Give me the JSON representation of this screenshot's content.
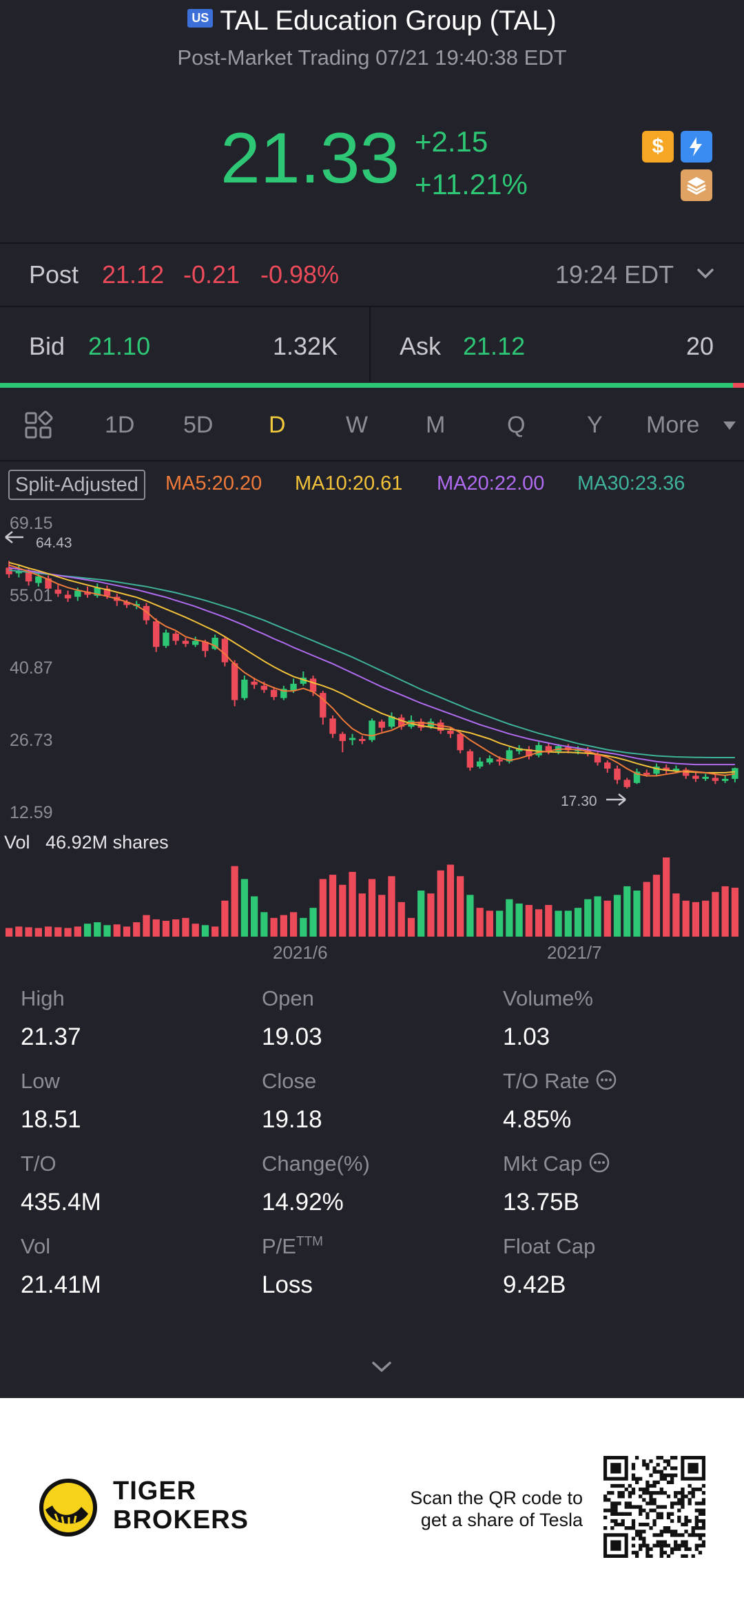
{
  "header": {
    "market_badge": "US",
    "title": "TAL Education Group (TAL)",
    "subtitle": "Post-Market Trading 07/21 19:40:38 EDT",
    "price": "21.33",
    "change_abs": "+2.15",
    "change_pct": "+11.21%",
    "icons": [
      "dollar-icon",
      "flash-icon",
      "stack-icon"
    ]
  },
  "post": {
    "label": "Post",
    "price": "21.12",
    "change": "-0.21",
    "change_pct": "-0.98%",
    "time": "19:24 EDT"
  },
  "quote": {
    "bid_label": "Bid",
    "bid_price": "21.10",
    "bid_size": "1.32K",
    "ask_label": "Ask",
    "ask_price": "21.12",
    "ask_size": "20",
    "bid_ratio": 0.985
  },
  "periods": {
    "items": [
      "1D",
      "5D",
      "D",
      "W",
      "M",
      "Q",
      "Y"
    ],
    "active": "D",
    "more_label": "More"
  },
  "indicators": {
    "split_label": "Split-Adjusted",
    "ma5": "MA5:20.20",
    "ma10": "MA10:20.61",
    "ma20": "MA20:22.00",
    "ma30": "MA30:23.36",
    "colors": {
      "ma5": "#f07a3a",
      "ma10": "#f3c23a",
      "ma20": "#b06cf0",
      "ma30": "#3fb39a",
      "up": "#2ec775",
      "down": "#ee4b5a"
    }
  },
  "chart_data": {
    "type": "candlestick",
    "y_ticks": [
      "69.15",
      "55.01",
      "40.87",
      "26.73",
      "12.59"
    ],
    "ylim": [
      12.59,
      69.15
    ],
    "high_marker": "64.43",
    "low_marker": "17.30",
    "x_ticks": [
      "2021/6",
      "2021/7"
    ],
    "volume_label": "Vol",
    "volume_value": "46.92M shares",
    "candles": [
      [
        60.5,
        59.2,
        61.8,
        58.5
      ],
      [
        59.4,
        59.8,
        61.0,
        58.6
      ],
      [
        59.6,
        57.8,
        60.2,
        57.0
      ],
      [
        57.5,
        58.8,
        59.5,
        56.8
      ],
      [
        58.4,
        56.4,
        59.0,
        55.8
      ],
      [
        56.2,
        55.4,
        57.2,
        54.8
      ],
      [
        55.2,
        54.5,
        56.0,
        53.8
      ],
      [
        54.8,
        56.0,
        56.6,
        54.0
      ],
      [
        55.8,
        55.2,
        56.8,
        54.6
      ],
      [
        55.0,
        56.6,
        57.4,
        54.6
      ],
      [
        56.4,
        55.0,
        57.0,
        54.4
      ],
      [
        54.8,
        54.0,
        55.4,
        53.0
      ],
      [
        53.8,
        53.2,
        54.2,
        52.6
      ],
      [
        53.2,
        53.4,
        54.0,
        52.4
      ],
      [
        53.0,
        50.2,
        53.6,
        49.4
      ],
      [
        50.0,
        45.0,
        50.6,
        44.0
      ],
      [
        45.2,
        47.8,
        48.4,
        44.8
      ],
      [
        47.6,
        46.2,
        48.0,
        45.4
      ],
      [
        46.2,
        45.6,
        46.8,
        45.0
      ],
      [
        45.4,
        46.2,
        47.0,
        45.0
      ],
      [
        46.0,
        44.2,
        46.4,
        43.0
      ],
      [
        44.6,
        46.8,
        47.4,
        44.4
      ],
      [
        46.6,
        42.0,
        47.0,
        41.2
      ],
      [
        41.8,
        34.6,
        42.4,
        33.4
      ],
      [
        35.0,
        38.6,
        39.4,
        34.6
      ],
      [
        38.2,
        37.6,
        39.0,
        36.8
      ],
      [
        37.4,
        36.6,
        38.2,
        36.0
      ],
      [
        36.6,
        35.2,
        37.2,
        34.6
      ],
      [
        35.0,
        36.8,
        37.4,
        34.6
      ],
      [
        36.4,
        37.8,
        38.8,
        36.0
      ],
      [
        37.8,
        39.0,
        40.2,
        37.4
      ],
      [
        38.8,
        36.2,
        39.4,
        35.4
      ],
      [
        36.0,
        31.2,
        36.4,
        29.8
      ],
      [
        31.0,
        28.0,
        31.6,
        27.2
      ],
      [
        28.0,
        26.6,
        28.4,
        24.4
      ],
      [
        26.8,
        27.2,
        28.0,
        25.8
      ],
      [
        27.0,
        26.8,
        27.6,
        26.0
      ],
      [
        26.8,
        30.6,
        31.0,
        26.4
      ],
      [
        30.4,
        29.2,
        30.8,
        28.4
      ],
      [
        29.4,
        31.4,
        32.2,
        29.0
      ],
      [
        31.2,
        29.4,
        31.8,
        28.8
      ],
      [
        29.4,
        30.6,
        31.6,
        29.0
      ],
      [
        30.4,
        29.2,
        31.0,
        28.6
      ],
      [
        29.4,
        30.4,
        31.0,
        29.0
      ],
      [
        30.2,
        28.6,
        30.8,
        28.0
      ],
      [
        28.6,
        28.0,
        29.2,
        27.2
      ],
      [
        28.0,
        24.8,
        28.4,
        24.2
      ],
      [
        24.6,
        21.4,
        25.0,
        20.8
      ],
      [
        21.6,
        22.6,
        23.4,
        21.2
      ],
      [
        22.4,
        23.2,
        23.8,
        22.0
      ],
      [
        23.0,
        22.6,
        23.6,
        21.8
      ],
      [
        22.6,
        24.8,
        25.4,
        22.2
      ],
      [
        24.6,
        25.2,
        25.8,
        24.0
      ],
      [
        25.0,
        23.6,
        25.6,
        23.0
      ],
      [
        23.8,
        25.8,
        26.4,
        23.4
      ],
      [
        25.6,
        24.6,
        26.2,
        24.0
      ],
      [
        24.6,
        25.6,
        26.0,
        24.0
      ],
      [
        25.4,
        24.8,
        26.0,
        24.2
      ],
      [
        24.6,
        25.0,
        25.6,
        24.0
      ],
      [
        24.8,
        24.2,
        25.4,
        23.6
      ],
      [
        24.0,
        22.4,
        24.4,
        21.8
      ],
      [
        22.4,
        21.2,
        22.8,
        20.4
      ],
      [
        21.2,
        19.0,
        21.8,
        18.2
      ],
      [
        19.0,
        17.6,
        19.4,
        17.3
      ],
      [
        18.4,
        20.6,
        21.2,
        18.2
      ],
      [
        20.4,
        20.2,
        21.0,
        19.6
      ],
      [
        20.2,
        21.6,
        22.2,
        19.8
      ],
      [
        21.4,
        20.8,
        22.0,
        20.2
      ],
      [
        20.8,
        21.2,
        21.8,
        20.4
      ],
      [
        21.0,
        19.8,
        21.4,
        19.2
      ],
      [
        19.8,
        19.2,
        20.4,
        18.6
      ],
      [
        19.2,
        19.6,
        20.2,
        18.8
      ],
      [
        19.4,
        18.8,
        20.0,
        18.2
      ],
      [
        18.8,
        19.2,
        19.8,
        18.4
      ],
      [
        19.2,
        21.3,
        21.4,
        18.5
      ]
    ],
    "ma5": [
      61.0,
      60.4,
      59.7,
      59.0,
      58.2,
      57.3,
      56.6,
      56.1,
      55.7,
      55.3,
      54.9,
      54.4,
      53.8,
      53.1,
      51.9,
      50.2,
      49.0,
      48.2,
      47.0,
      46.4,
      46.0,
      45.2,
      43.6,
      41.6,
      40.0,
      38.8,
      37.8,
      37.0,
      36.4,
      36.4,
      36.9,
      36.2,
      34.8,
      33.0,
      30.8,
      29.0,
      27.9,
      27.6,
      28.2,
      28.7,
      29.6,
      30.2,
      30.2,
      30.0,
      29.6,
      29.3,
      28.2,
      26.8,
      25.6,
      24.4,
      23.3,
      22.8,
      23.2,
      23.8,
      24.4,
      24.6,
      25.0,
      25.0,
      24.9,
      24.6,
      24.0,
      23.4,
      22.4,
      21.2,
      20.2,
      19.8,
      19.8,
      20.1,
      20.4,
      20.8,
      20.6,
      20.4,
      20.1,
      19.9,
      20.2
    ],
    "ma10": [
      61.5,
      61.0,
      60.4,
      59.9,
      59.3,
      58.7,
      58.1,
      57.6,
      57.1,
      56.6,
      56.2,
      55.7,
      55.2,
      54.7,
      54.0,
      53.2,
      52.4,
      51.6,
      50.8,
      49.9,
      49.0,
      48.1,
      47.0,
      45.8,
      44.6,
      43.4,
      42.2,
      41.1,
      40.1,
      39.2,
      38.6,
      38.0,
      37.4,
      36.7,
      35.8,
      34.8,
      33.8,
      32.9,
      32.0,
      31.3,
      30.6,
      30.0,
      29.6,
      29.3,
      29.0,
      28.9,
      28.6,
      28.2,
      27.6,
      27.0,
      26.2,
      25.6,
      25.0,
      24.8,
      24.6,
      24.5,
      24.4,
      24.4,
      24.3,
      24.2,
      24.0,
      23.7,
      23.3,
      22.8,
      22.2,
      21.7,
      21.2,
      20.9,
      20.7,
      20.6,
      20.5,
      20.4,
      20.4,
      20.4,
      20.6
    ],
    "ma20": [
      60.5,
      60.2,
      59.9,
      59.6,
      59.3,
      59.0,
      58.7,
      58.4,
      58.1,
      57.8,
      57.4,
      57.0,
      56.6,
      56.2,
      55.7,
      55.2,
      54.7,
      54.1,
      53.5,
      52.9,
      52.2,
      51.5,
      50.8,
      50.0,
      49.2,
      48.3,
      47.5,
      46.6,
      45.8,
      44.9,
      44.1,
      43.3,
      42.5,
      41.7,
      40.8,
      39.9,
      39.0,
      38.1,
      37.2,
      36.4,
      35.6,
      34.8,
      34.0,
      33.3,
      32.6,
      31.9,
      31.2,
      30.5,
      29.8,
      29.2,
      28.6,
      28.0,
      27.5,
      27.0,
      26.6,
      26.2,
      25.8,
      25.5,
      25.2,
      24.9,
      24.6,
      24.3,
      24.0,
      23.6,
      23.2,
      22.9,
      22.6,
      22.4,
      22.2,
      22.1,
      22.0,
      22.0,
      22.0,
      22.0,
      22.0
    ],
    "ma30": [
      60.0,
      59.8,
      59.6,
      59.4,
      59.2,
      59.0,
      58.8,
      58.6,
      58.4,
      58.2,
      58.0,
      57.7,
      57.4,
      57.1,
      56.8,
      56.4,
      56.0,
      55.6,
      55.1,
      54.6,
      54.1,
      53.5,
      52.9,
      52.3,
      51.6,
      50.9,
      50.2,
      49.4,
      48.6,
      47.8,
      47.0,
      46.2,
      45.4,
      44.6,
      43.8,
      43.0,
      42.1,
      41.2,
      40.3,
      39.4,
      38.5,
      37.6,
      36.7,
      35.9,
      35.1,
      34.3,
      33.5,
      32.7,
      32.0,
      31.3,
      30.6,
      29.9,
      29.3,
      28.7,
      28.1,
      27.6,
      27.1,
      26.6,
      26.1,
      25.7,
      25.3,
      24.9,
      24.6,
      24.3,
      24.1,
      23.9,
      23.7,
      23.6,
      23.5,
      23.45,
      23.4,
      23.38,
      23.37,
      23.36,
      23.36
    ],
    "volumes": [
      0.12,
      0.14,
      0.13,
      0.12,
      0.14,
      0.13,
      0.12,
      0.14,
      0.18,
      0.2,
      0.16,
      0.17,
      0.14,
      0.2,
      0.3,
      0.24,
      0.22,
      0.24,
      0.26,
      0.18,
      0.16,
      0.14,
      0.5,
      0.98,
      0.8,
      0.56,
      0.34,
      0.26,
      0.3,
      0.34,
      0.26,
      0.4,
      0.8,
      0.86,
      0.72,
      0.9,
      0.6,
      0.8,
      0.58,
      0.84,
      0.48,
      0.26,
      0.64,
      0.6,
      0.92,
      1.0,
      0.84,
      0.58,
      0.4,
      0.36,
      0.36,
      0.52,
      0.46,
      0.44,
      0.38,
      0.44,
      0.36,
      0.36,
      0.4,
      0.52,
      0.56,
      0.5,
      0.58,
      0.7,
      0.64,
      0.76,
      0.86,
      1.1,
      0.6,
      0.5,
      0.48,
      0.5,
      0.62,
      0.7,
      0.68
    ],
    "vol_colors": "dddddddduuuddddddddduddduuuddduudddddddddduddddudduuuddduuuuuduuudddd"
  },
  "stats": [
    {
      "label": "High",
      "value": "21.37"
    },
    {
      "label": "Open",
      "value": "19.03"
    },
    {
      "label": "Volume%",
      "value": "1.03"
    },
    {
      "label": "Low",
      "value": "18.51"
    },
    {
      "label": "Close",
      "value": "19.18"
    },
    {
      "label": "T/O Rate",
      "value": "4.85%"
    },
    {
      "label": "T/O",
      "value": "435.4M"
    },
    {
      "label": "Change(%)",
      "value": "14.92%"
    },
    {
      "label": "Mkt Cap",
      "value": "13.75B"
    },
    {
      "label": "Vol",
      "value": "21.41M"
    },
    {
      "label": "P/E",
      "label_sup": "TTM",
      "value": "Loss"
    },
    {
      "label": "Float Cap",
      "value": "9.42B"
    }
  ],
  "footer": {
    "brand_line1": "TIGER",
    "brand_line2": "BROKERS",
    "scan_line1": "Scan the QR code to",
    "scan_line2": "get a share of Tesla"
  }
}
